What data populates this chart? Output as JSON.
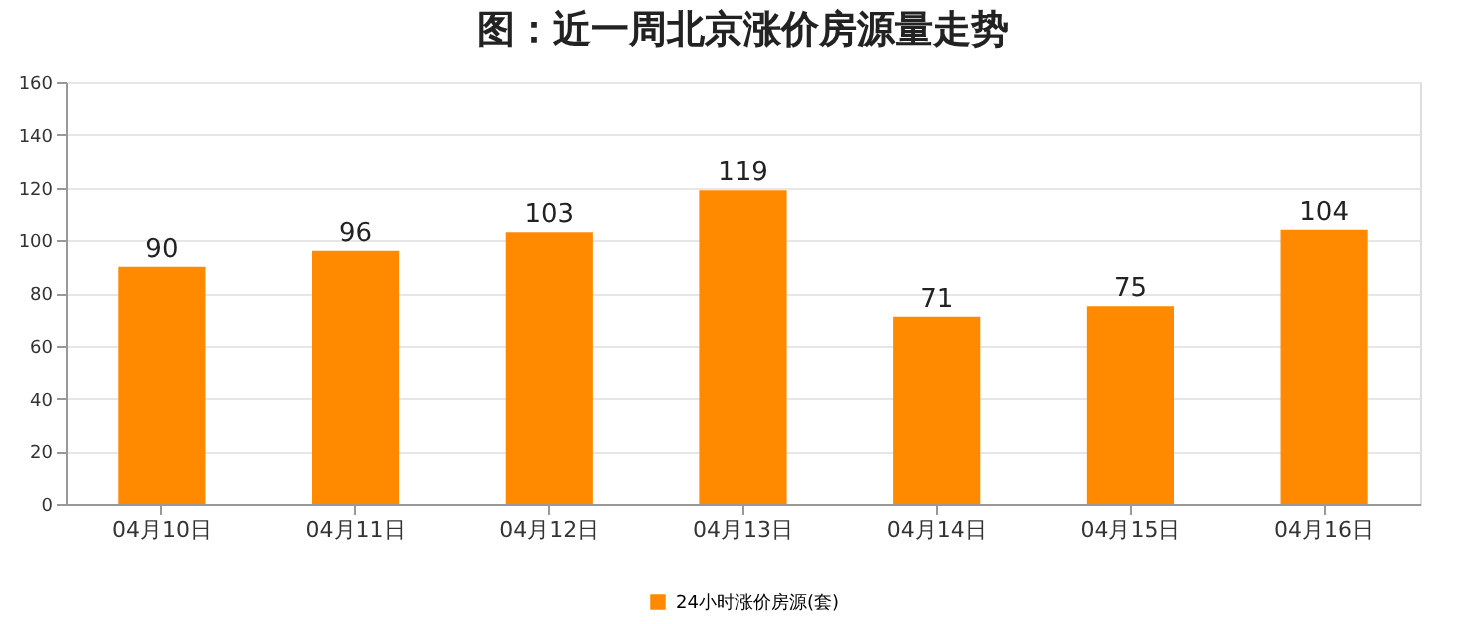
{
  "chart_data": {
    "type": "bar",
    "title": "图：近一周北京涨价房源量走势",
    "categories": [
      "04月10日",
      "04月11日",
      "04月12日",
      "04月13日",
      "04月14日",
      "04月15日",
      "04月16日"
    ],
    "series": [
      {
        "name": "24小时涨价房源(套)",
        "color": "#ff8a00",
        "values": [
          90,
          96,
          103,
          119,
          71,
          75,
          104
        ]
      }
    ],
    "ylim": [
      0,
      160
    ],
    "yticks": [
      0,
      20,
      40,
      60,
      80,
      100,
      120,
      140,
      160
    ],
    "grid": "y",
    "legend": "bottom",
    "data_labels": true
  }
}
